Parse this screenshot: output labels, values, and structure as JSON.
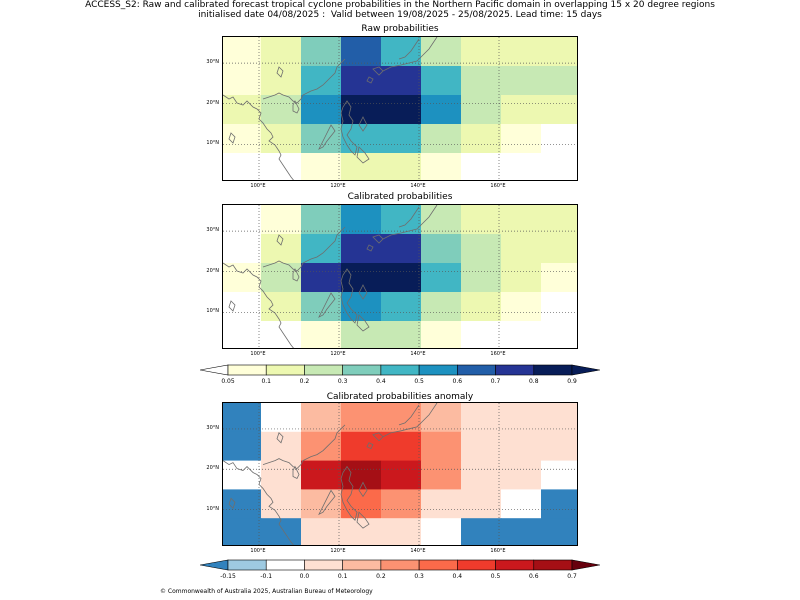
{
  "title_line1": "ACCESS_S2: Raw and calibrated forecast tropical cyclone probabilities in the Northern Pacific domain in overlapping 15 x 20 degree regions",
  "title_line2": "initialised date 04/08/2025 :  Valid between 19/08/2025 - 25/08/2025. Lead time: 15 days",
  "footer": "© Commonwealth of Australia 2025, Australian Bureau of Meteorology",
  "axes": {
    "lat_labels": [
      "30°N",
      "20°N",
      "10°N"
    ],
    "lon_labels": [
      "100°E",
      "120°E",
      "140°E",
      "160°E"
    ]
  },
  "panels": [
    {
      "title": "Raw probabilities",
      "palette": "blues",
      "grid": [
        [
          0.05,
          0.1,
          0.3,
          0.6,
          0.4,
          0.2,
          0.1,
          0.1,
          0.1
        ],
        [
          0.05,
          0.1,
          0.4,
          0.7,
          0.7,
          0.4,
          0.2,
          0.2,
          0.2
        ],
        [
          0.1,
          0.2,
          0.5,
          0.8,
          0.8,
          0.5,
          0.2,
          0.1,
          0.1
        ],
        [
          0.05,
          0.1,
          0.3,
          0.4,
          0.4,
          0.2,
          0.1,
          0.05,
          0.0
        ],
        [
          0.0,
          0.0,
          0.05,
          0.1,
          0.1,
          0.05,
          0.0,
          0.0,
          0.0
        ]
      ]
    },
    {
      "title": "Calibrated probabilities",
      "palette": "blues",
      "grid": [
        [
          0.0,
          0.05,
          0.3,
          0.5,
          0.4,
          0.2,
          0.1,
          0.1,
          0.1
        ],
        [
          0.0,
          0.1,
          0.4,
          0.7,
          0.7,
          0.3,
          0.2,
          0.1,
          0.1
        ],
        [
          0.05,
          0.2,
          0.7,
          0.9,
          0.8,
          0.4,
          0.2,
          0.1,
          0.05
        ],
        [
          0.0,
          0.1,
          0.3,
          0.5,
          0.4,
          0.2,
          0.1,
          0.05,
          0.0
        ],
        [
          0.0,
          0.0,
          0.05,
          0.2,
          0.2,
          0.05,
          0.0,
          0.0,
          0.0
        ]
      ]
    },
    {
      "title": "Calibrated probabilities anomaly",
      "palette": "anomaly",
      "grid": [
        [
          -0.2,
          -0.1,
          0.1,
          0.2,
          0.2,
          0.1,
          0.0,
          0.0,
          0.0
        ],
        [
          -0.2,
          0.0,
          0.2,
          0.4,
          0.4,
          0.2,
          0.05,
          0.0,
          0.0
        ],
        [
          -0.1,
          0.05,
          0.5,
          0.6,
          0.5,
          0.2,
          0.05,
          0.0,
          -0.1
        ],
        [
          -0.2,
          0.0,
          0.1,
          0.3,
          0.2,
          0.05,
          0.0,
          -0.1,
          -0.2
        ],
        [
          -0.2,
          -0.2,
          0.0,
          0.05,
          0.05,
          -0.1,
          -0.2,
          -0.2,
          -0.2
        ]
      ]
    }
  ],
  "colorbars": [
    {
      "ticks": [
        "0.05",
        "0.1",
        "0.2",
        "0.3",
        "0.4",
        "0.5",
        "0.6",
        "0.7",
        "0.8",
        "0.9"
      ],
      "colors": [
        "#ffffd9",
        "#edf8b1",
        "#c7e9b4",
        "#7fcdbb",
        "#41b6c4",
        "#1d91c0",
        "#225ea8",
        "#253494",
        "#081d58"
      ],
      "under": "#ffffff",
      "over": "#081d58"
    },
    {
      "ticks": [
        "-0.15",
        "-0.1",
        "0.0",
        "0.1",
        "0.2",
        "0.3",
        "0.4",
        "0.5",
        "0.6",
        "0.7"
      ],
      "colors": [
        "#9ecae1",
        "#ffffff",
        "#fee0d2",
        "#fcbba1",
        "#fc9272",
        "#fb6a4a",
        "#ef3b2c",
        "#cb181d",
        "#a50f15"
      ],
      "under": "#3182bd",
      "over": "#67000d"
    }
  ]
}
